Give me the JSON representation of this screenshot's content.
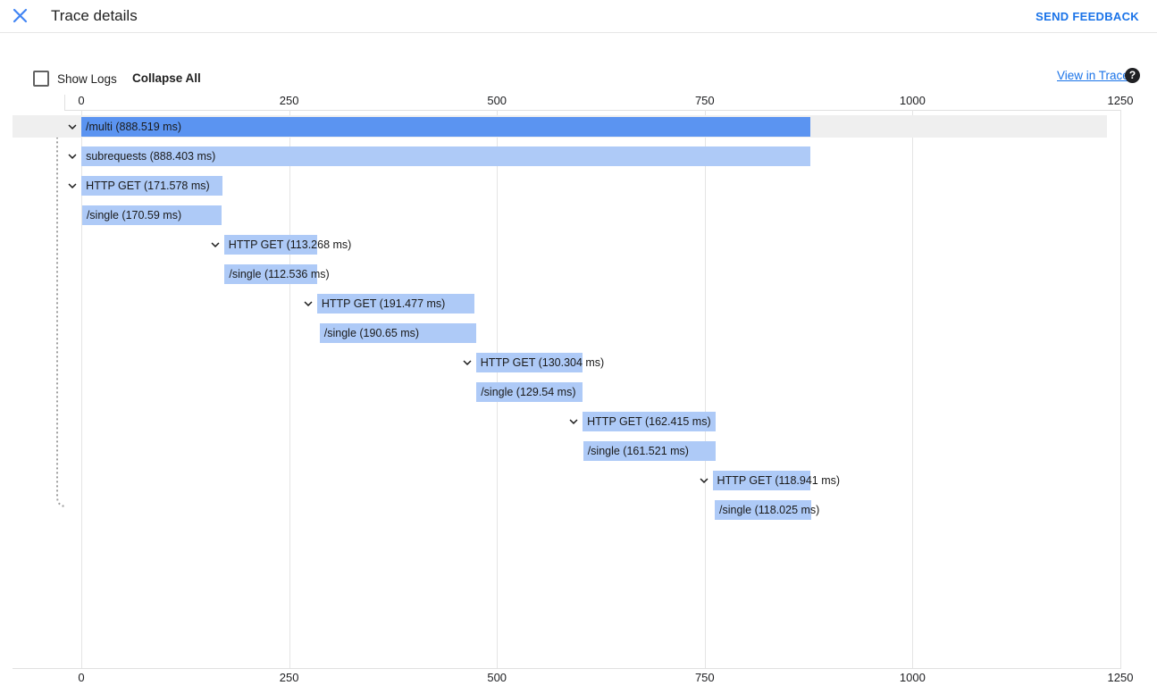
{
  "header": {
    "title": "Trace details",
    "send_feedback_label": "SEND FEEDBACK"
  },
  "toolbar": {
    "show_logs_label": "Show Logs",
    "show_logs_checked": false,
    "collapse_all_label": "Collapse All",
    "view_in_trace_label": "View in Trace",
    "help_glyph": "?"
  },
  "colors": {
    "link_blue": "#1a73e8",
    "close_x_blue": "#4285f4",
    "bar_light": "#aecaf7",
    "bar_dark": "#5b94f1",
    "row_highlight": "#efefef",
    "gridline": "#e4e4e4",
    "guide_dotted": "#9e9e9e"
  },
  "chart_data": {
    "type": "waterfall-gantt",
    "unit": "ms",
    "x_ticks": [
      0,
      250,
      500,
      750,
      1000,
      1250
    ],
    "xlim": [
      0,
      1250
    ],
    "grid": true,
    "spans": [
      {
        "label": "/multi (888.519 ms)",
        "name": "/multi",
        "start_ms": 0.0,
        "duration_ms": 888.519,
        "selected": true,
        "expandable": true
      },
      {
        "label": "subrequests (888.403 ms)",
        "name": "subrequests",
        "start_ms": 0.1,
        "duration_ms": 888.403,
        "selected": false,
        "expandable": true
      },
      {
        "label": "HTTP GET (171.578 ms)",
        "name": "HTTP GET",
        "start_ms": 0.2,
        "duration_ms": 171.578,
        "selected": false,
        "expandable": true
      },
      {
        "label": "/single (170.59 ms)",
        "name": "/single",
        "start_ms": 0.9,
        "duration_ms": 170.59,
        "selected": false,
        "expandable": false
      },
      {
        "label": "HTTP GET (113.268 ms)",
        "name": "HTTP GET",
        "start_ms": 174.0,
        "duration_ms": 113.268,
        "selected": false,
        "expandable": true
      },
      {
        "label": "/single (112.536 ms)",
        "name": "/single",
        "start_ms": 174.6,
        "duration_ms": 112.536,
        "selected": false,
        "expandable": false
      },
      {
        "label": "HTTP GET (191.477 ms)",
        "name": "HTTP GET",
        "start_ms": 287.3,
        "duration_ms": 191.477,
        "selected": false,
        "expandable": true
      },
      {
        "label": "/single (190.65 ms)",
        "name": "/single",
        "start_ms": 290.5,
        "duration_ms": 190.65,
        "selected": false,
        "expandable": false
      },
      {
        "label": "HTTP GET (130.304 ms)",
        "name": "HTTP GET",
        "start_ms": 481.0,
        "duration_ms": 130.304,
        "selected": false,
        "expandable": true
      },
      {
        "label": "/single (129.54 ms)",
        "name": "/single",
        "start_ms": 481.5,
        "duration_ms": 129.54,
        "selected": false,
        "expandable": false
      },
      {
        "label": "HTTP GET (162.415 ms)",
        "name": "HTTP GET",
        "start_ms": 611.0,
        "duration_ms": 162.415,
        "selected": false,
        "expandable": true
      },
      {
        "label": "/single (161.521 ms)",
        "name": "/single",
        "start_ms": 611.6,
        "duration_ms": 161.521,
        "selected": false,
        "expandable": false
      },
      {
        "label": "HTTP GET (118.941 ms)",
        "name": "HTTP GET",
        "start_ms": 769.3,
        "duration_ms": 118.941,
        "selected": false,
        "expandable": true
      },
      {
        "label": "/single (118.025 ms)",
        "name": "/single",
        "start_ms": 772.0,
        "duration_ms": 118.025,
        "selected": false,
        "expandable": false
      }
    ]
  }
}
